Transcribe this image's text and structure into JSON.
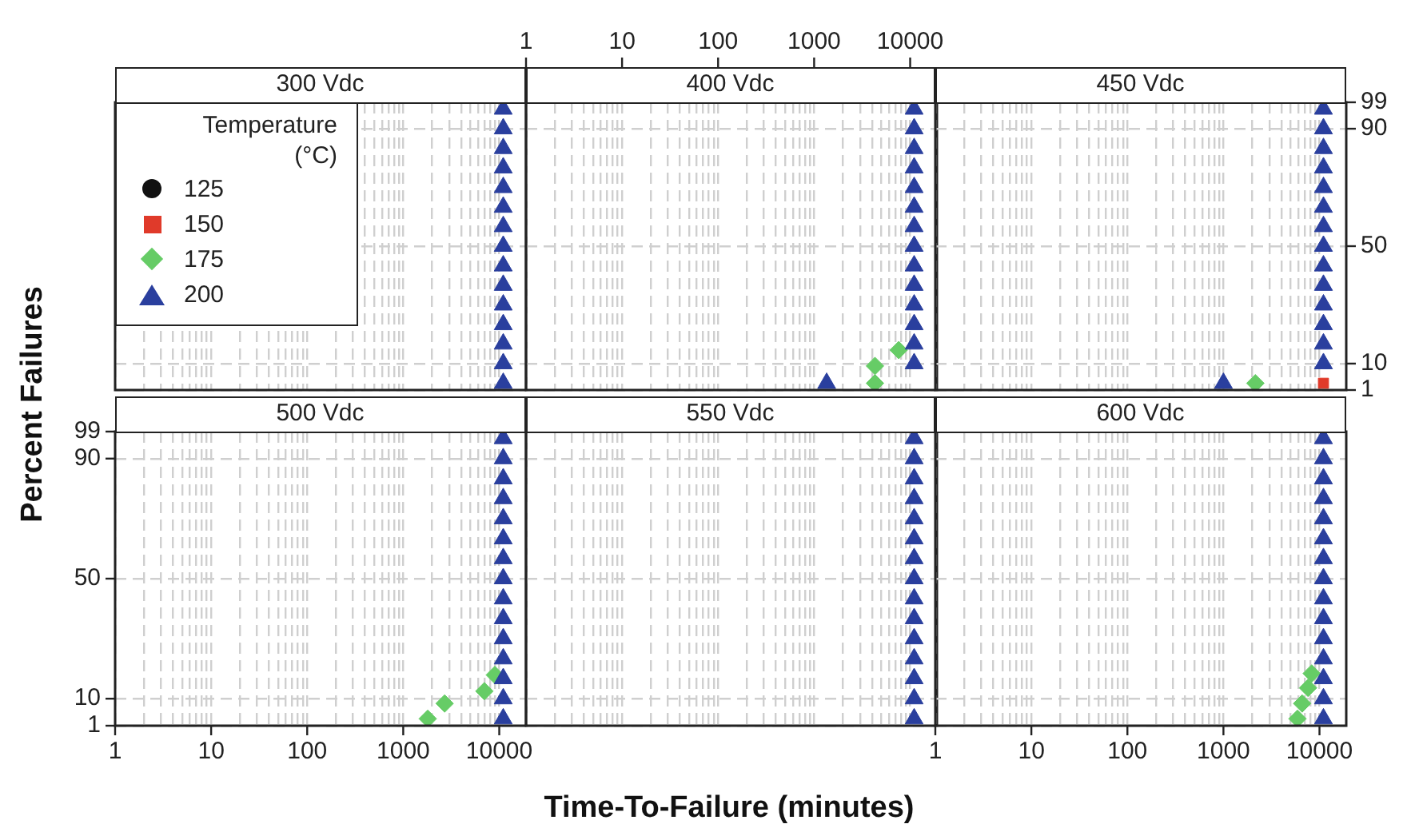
{
  "chart_data": [
    {
      "type": "scatter",
      "title": "300 Vdc",
      "log": "x",
      "grid": true,
      "tick_labels": false,
      "legend": "top left",
      "legend_title": "Temperature (°C)",
      "xlim": [
        1,
        19000
      ],
      "ylim": [
        1,
        99
      ],
      "xticks": [
        1,
        {
          "value": 2,
          "label": null
        },
        {
          "value": 3,
          "label": null
        },
        {
          "value": 4,
          "label": null
        },
        {
          "value": 5,
          "label": null
        },
        {
          "value": 6,
          "label": null
        },
        {
          "value": 7,
          "label": null
        },
        {
          "value": 8,
          "label": null
        },
        {
          "value": 9,
          "label": null
        },
        10,
        {
          "value": 20,
          "label": null
        },
        {
          "value": 30,
          "label": null
        },
        {
          "value": 40,
          "label": null
        },
        {
          "value": 50,
          "label": null
        },
        {
          "value": 60,
          "label": null
        },
        {
          "value": 70,
          "label": null
        },
        {
          "value": 80,
          "label": null
        },
        {
          "value": 90,
          "label": null
        },
        100,
        {
          "value": 200,
          "label": null
        },
        {
          "value": 300,
          "label": null
        },
        {
          "value": 400,
          "label": null
        },
        {
          "value": 500,
          "label": null
        },
        {
          "value": 600,
          "label": null
        },
        {
          "value": 700,
          "label": null
        },
        {
          "value": 800,
          "label": null
        },
        {
          "value": 900,
          "label": null
        },
        1000,
        {
          "value": 2000,
          "label": null
        },
        {
          "value": 3000,
          "label": null
        },
        {
          "value": 4000,
          "label": null
        },
        {
          "value": 5000,
          "label": null
        },
        {
          "value": 6000,
          "label": null
        },
        {
          "value": 7000,
          "label": null
        },
        {
          "value": 8000,
          "label": null
        },
        {
          "value": 9000,
          "label": null
        },
        10000
      ],
      "yticks": [
        1,
        10,
        50,
        90,
        99
      ],
      "series": [
        {
          "name": "125",
          "color": "#111111",
          "marker": "circle"
        },
        {
          "name": "150",
          "color": "#e03a2a",
          "marker": "square"
        },
        {
          "name": "175",
          "color": "#66cc66",
          "marker": "diamond"
        },
        {
          "name": "200",
          "color": "#2a3f9e",
          "marker": "triangle",
          "x": [
            11000,
            11000,
            11000,
            11000,
            11000,
            11000,
            11000,
            11000,
            11000,
            11000,
            11000,
            11000,
            11000,
            11000,
            11000
          ],
          "values": [
            3.3,
            10,
            16.7,
            23.3,
            30,
            36.7,
            43.3,
            50,
            56.7,
            63.3,
            70,
            76.7,
            83.3,
            90,
            96.7
          ]
        }
      ]
    },
    {
      "type": "scatter",
      "title": "400 Vdc",
      "log": "x",
      "grid": true,
      "tick_labels": "x",
      "xlim": [
        1,
        19000
      ],
      "ylim": [
        1,
        99
      ],
      "xticks": [
        1,
        {
          "value": 2,
          "label": null
        },
        {
          "value": 3,
          "label": null
        },
        {
          "value": 4,
          "label": null
        },
        {
          "value": 5,
          "label": null
        },
        {
          "value": 6,
          "label": null
        },
        {
          "value": 7,
          "label": null
        },
        {
          "value": 8,
          "label": null
        },
        {
          "value": 9,
          "label": null
        },
        10,
        {
          "value": 20,
          "label": null
        },
        {
          "value": 30,
          "label": null
        },
        {
          "value": 40,
          "label": null
        },
        {
          "value": 50,
          "label": null
        },
        {
          "value": 60,
          "label": null
        },
        {
          "value": 70,
          "label": null
        },
        {
          "value": 80,
          "label": null
        },
        {
          "value": 90,
          "label": null
        },
        100,
        {
          "value": 200,
          "label": null
        },
        {
          "value": 300,
          "label": null
        },
        {
          "value": 400,
          "label": null
        },
        {
          "value": 500,
          "label": null
        },
        {
          "value": 600,
          "label": null
        },
        {
          "value": 700,
          "label": null
        },
        {
          "value": 800,
          "label": null
        },
        {
          "value": 900,
          "label": null
        },
        1000,
        {
          "value": 2000,
          "label": null
        },
        {
          "value": 3000,
          "label": null
        },
        {
          "value": 4000,
          "label": null
        },
        {
          "value": 5000,
          "label": null
        },
        {
          "value": 6000,
          "label": null
        },
        {
          "value": 7000,
          "label": null
        },
        {
          "value": 8000,
          "label": null
        },
        {
          "value": 9000,
          "label": null
        },
        10000
      ],
      "yticks": [
        1,
        10,
        50,
        90,
        99
      ],
      "series": [
        {
          "color": "#66cc66",
          "marker": "diamond",
          "x": [
            4300,
            4300,
            7600
          ],
          "values": [
            3.3,
            9.2,
            14.6
          ]
        },
        {
          "color": "#2a3f9e",
          "marker": "triangle",
          "x": [
            1350,
            11000,
            11000,
            11000,
            11000,
            11000,
            11000,
            11000,
            11000,
            11000,
            11000,
            11000,
            11000,
            11000,
            11000
          ],
          "values": [
            3.3,
            10,
            16.7,
            23.3,
            30,
            36.7,
            43.3,
            50,
            56.7,
            63.3,
            70,
            76.7,
            83.3,
            90,
            96.7
          ]
        }
      ]
    },
    {
      "type": "scatter",
      "title": "450 Vdc",
      "log": "x",
      "grid": true,
      "tick_labels": "y",
      "xlim": [
        1,
        19000
      ],
      "ylim": [
        1,
        99
      ],
      "xticks": [
        1,
        {
          "value": 2,
          "label": null
        },
        {
          "value": 3,
          "label": null
        },
        {
          "value": 4,
          "label": null
        },
        {
          "value": 5,
          "label": null
        },
        {
          "value": 6,
          "label": null
        },
        {
          "value": 7,
          "label": null
        },
        {
          "value": 8,
          "label": null
        },
        {
          "value": 9,
          "label": null
        },
        10,
        {
          "value": 20,
          "label": null
        },
        {
          "value": 30,
          "label": null
        },
        {
          "value": 40,
          "label": null
        },
        {
          "value": 50,
          "label": null
        },
        {
          "value": 60,
          "label": null
        },
        {
          "value": 70,
          "label": null
        },
        {
          "value": 80,
          "label": null
        },
        {
          "value": 90,
          "label": null
        },
        100,
        {
          "value": 200,
          "label": null
        },
        {
          "value": 300,
          "label": null
        },
        {
          "value": 400,
          "label": null
        },
        {
          "value": 500,
          "label": null
        },
        {
          "value": 600,
          "label": null
        },
        {
          "value": 700,
          "label": null
        },
        {
          "value": 800,
          "label": null
        },
        {
          "value": 900,
          "label": null
        },
        1000,
        {
          "value": 2000,
          "label": null
        },
        {
          "value": 3000,
          "label": null
        },
        {
          "value": 4000,
          "label": null
        },
        {
          "value": 5000,
          "label": null
        },
        {
          "value": 6000,
          "label": null
        },
        {
          "value": 7000,
          "label": null
        },
        {
          "value": 8000,
          "label": null
        },
        {
          "value": 9000,
          "label": null
        },
        10000
      ],
      "yticks": [
        1,
        10,
        50,
        90,
        99
      ],
      "series": [
        {
          "color": "#e03a2a",
          "marker": "square",
          "x": [
            11000
          ],
          "values": [
            3.3
          ]
        },
        {
          "color": "#66cc66",
          "marker": "diamond",
          "x": [
            2150
          ],
          "values": [
            3.3
          ]
        },
        {
          "color": "#2a3f9e",
          "marker": "triangle",
          "x": [
            1000,
            11000,
            11000,
            11000,
            11000,
            11000,
            11000,
            11000,
            11000,
            11000,
            11000,
            11000,
            11000,
            11000,
            11000
          ],
          "values": [
            3.3,
            10,
            16.7,
            23.3,
            30,
            36.7,
            43.3,
            50,
            56.7,
            63.3,
            70,
            76.7,
            83.3,
            90,
            96.7
          ]
        }
      ]
    },
    {
      "type": "scatter",
      "title": "500 Vdc",
      "ylabel": "Percent Failures",
      "log": "x",
      "grid": true,
      "xlim": [
        1,
        19000
      ],
      "ylim": [
        1,
        99
      ],
      "xticks": [
        1,
        {
          "value": 2,
          "label": null
        },
        {
          "value": 3,
          "label": null
        },
        {
          "value": 4,
          "label": null
        },
        {
          "value": 5,
          "label": null
        },
        {
          "value": 6,
          "label": null
        },
        {
          "value": 7,
          "label": null
        },
        {
          "value": 8,
          "label": null
        },
        {
          "value": 9,
          "label": null
        },
        10,
        {
          "value": 20,
          "label": null
        },
        {
          "value": 30,
          "label": null
        },
        {
          "value": 40,
          "label": null
        },
        {
          "value": 50,
          "label": null
        },
        {
          "value": 60,
          "label": null
        },
        {
          "value": 70,
          "label": null
        },
        {
          "value": 80,
          "label": null
        },
        {
          "value": 90,
          "label": null
        },
        100,
        {
          "value": 200,
          "label": null
        },
        {
          "value": 300,
          "label": null
        },
        {
          "value": 400,
          "label": null
        },
        {
          "value": 500,
          "label": null
        },
        {
          "value": 600,
          "label": null
        },
        {
          "value": 700,
          "label": null
        },
        {
          "value": 800,
          "label": null
        },
        {
          "value": 900,
          "label": null
        },
        1000,
        {
          "value": 2000,
          "label": null
        },
        {
          "value": 3000,
          "label": null
        },
        {
          "value": 4000,
          "label": null
        },
        {
          "value": 5000,
          "label": null
        },
        {
          "value": 6000,
          "label": null
        },
        {
          "value": 7000,
          "label": null
        },
        {
          "value": 8000,
          "label": null
        },
        {
          "value": 9000,
          "label": null
        },
        10000
      ],
      "yticks": [
        1,
        10,
        50,
        90,
        99
      ],
      "series": [
        {
          "color": "#66cc66",
          "marker": "diamond",
          "x": [
            1800,
            2700,
            7000,
            9000
          ],
          "values": [
            3.3,
            8.4,
            12.5,
            17.9
          ]
        },
        {
          "color": "#2a3f9e",
          "marker": "triangle",
          "x": [
            11000,
            11000,
            11000,
            11000,
            11000,
            11000,
            11000,
            11000,
            11000,
            11000,
            11000,
            11000,
            11000,
            11000,
            11000
          ],
          "values": [
            3.3,
            10,
            16.7,
            23.3,
            30,
            36.7,
            43.3,
            50,
            56.7,
            63.3,
            70,
            76.7,
            83.3,
            90,
            96.7
          ]
        }
      ]
    },
    {
      "type": "scatter",
      "title": "550 Vdc",
      "xlabel": "Time-To-Failure (minutes)",
      "log": "x",
      "grid": true,
      "tick_labels": false,
      "xlim": [
        1,
        19000
      ],
      "ylim": [
        1,
        99
      ],
      "xticks": [
        1,
        {
          "value": 2,
          "label": null
        },
        {
          "value": 3,
          "label": null
        },
        {
          "value": 4,
          "label": null
        },
        {
          "value": 5,
          "label": null
        },
        {
          "value": 6,
          "label": null
        },
        {
          "value": 7,
          "label": null
        },
        {
          "value": 8,
          "label": null
        },
        {
          "value": 9,
          "label": null
        },
        10,
        {
          "value": 20,
          "label": null
        },
        {
          "value": 30,
          "label": null
        },
        {
          "value": 40,
          "label": null
        },
        {
          "value": 50,
          "label": null
        },
        {
          "value": 60,
          "label": null
        },
        {
          "value": 70,
          "label": null
        },
        {
          "value": 80,
          "label": null
        },
        {
          "value": 90,
          "label": null
        },
        100,
        {
          "value": 200,
          "label": null
        },
        {
          "value": 300,
          "label": null
        },
        {
          "value": 400,
          "label": null
        },
        {
          "value": 500,
          "label": null
        },
        {
          "value": 600,
          "label": null
        },
        {
          "value": 700,
          "label": null
        },
        {
          "value": 800,
          "label": null
        },
        {
          "value": 900,
          "label": null
        },
        1000,
        {
          "value": 2000,
          "label": null
        },
        {
          "value": 3000,
          "label": null
        },
        {
          "value": 4000,
          "label": null
        },
        {
          "value": 5000,
          "label": null
        },
        {
          "value": 6000,
          "label": null
        },
        {
          "value": 7000,
          "label": null
        },
        {
          "value": 8000,
          "label": null
        },
        {
          "value": 9000,
          "label": null
        },
        10000
      ],
      "yticks": [
        1,
        10,
        50,
        90,
        99
      ],
      "series": [
        {
          "color": "#2a3f9e",
          "marker": "triangle",
          "x": [
            11000,
            11000,
            11000,
            11000,
            11000,
            11000,
            11000,
            11000,
            11000,
            11000,
            11000,
            11000,
            11000,
            11000,
            11000
          ],
          "values": [
            3.3,
            10,
            16.7,
            23.3,
            30,
            36.7,
            43.3,
            50,
            56.7,
            63.3,
            70,
            76.7,
            83.3,
            90,
            96.7
          ]
        }
      ]
    },
    {
      "type": "scatter",
      "title": "600 Vdc",
      "log": "x",
      "grid": true,
      "tick_labels": "x",
      "xlim": [
        1,
        19000
      ],
      "ylim": [
        1,
        99
      ],
      "xticks": [
        1,
        {
          "value": 2,
          "label": null
        },
        {
          "value": 3,
          "label": null
        },
        {
          "value": 4,
          "label": null
        },
        {
          "value": 5,
          "label": null
        },
        {
          "value": 6,
          "label": null
        },
        {
          "value": 7,
          "label": null
        },
        {
          "value": 8,
          "label": null
        },
        {
          "value": 9,
          "label": null
        },
        10,
        {
          "value": 20,
          "label": null
        },
        {
          "value": 30,
          "label": null
        },
        {
          "value": 40,
          "label": null
        },
        {
          "value": 50,
          "label": null
        },
        {
          "value": 60,
          "label": null
        },
        {
          "value": 70,
          "label": null
        },
        {
          "value": 80,
          "label": null
        },
        {
          "value": 90,
          "label": null
        },
        100,
        {
          "value": 200,
          "label": null
        },
        {
          "value": 300,
          "label": null
        },
        {
          "value": 400,
          "label": null
        },
        {
          "value": 500,
          "label": null
        },
        {
          "value": 600,
          "label": null
        },
        {
          "value": 700,
          "label": null
        },
        {
          "value": 800,
          "label": null
        },
        {
          "value": 900,
          "label": null
        },
        1000,
        {
          "value": 2000,
          "label": null
        },
        {
          "value": 3000,
          "label": null
        },
        {
          "value": 4000,
          "label": null
        },
        {
          "value": 5000,
          "label": null
        },
        {
          "value": 6000,
          "label": null
        },
        {
          "value": 7000,
          "label": null
        },
        {
          "value": 8000,
          "label": null
        },
        {
          "value": 9000,
          "label": null
        },
        10000
      ],
      "yticks": [
        1,
        10,
        50,
        90,
        99
      ],
      "series": [
        {
          "color": "#66cc66",
          "marker": "diamond",
          "x": [
            5900,
            6600,
            7600,
            8300
          ],
          "values": [
            3.3,
            8.4,
            13.6,
            18.4
          ]
        },
        {
          "color": "#2a3f9e",
          "marker": "triangle",
          "x": [
            11000,
            11000,
            11000,
            11000,
            11000,
            11000,
            11000,
            11000,
            11000,
            11000,
            11000,
            11000,
            11000,
            11000,
            11000
          ],
          "values": [
            3.3,
            10,
            16.7,
            23.3,
            30,
            36.7,
            43.3,
            50,
            56.7,
            63.3,
            70,
            76.7,
            83.3,
            90,
            96.7
          ]
        }
      ]
    }
  ]
}
